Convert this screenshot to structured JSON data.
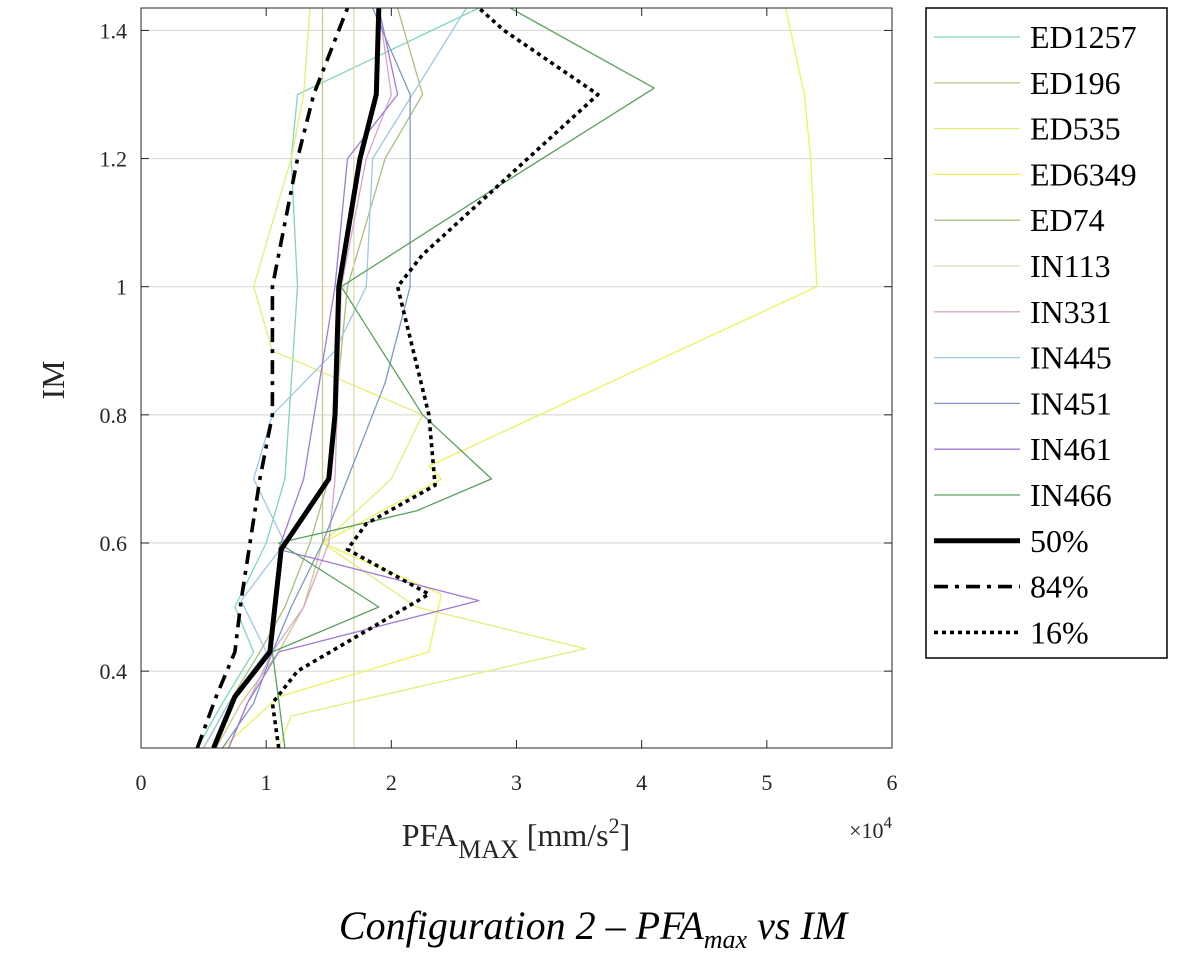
{
  "chart_data": {
    "type": "line",
    "xlabel_main": "PFA",
    "xlabel_sub": "MAX",
    "xlabel_unit": " [mm/s",
    "xlabel_sup": "2",
    "xlabel_end": "]",
    "ylabel": "IM",
    "x_exponent_label": "×10",
    "x_exponent_power": "4",
    "xlim": [
      0,
      6
    ],
    "ylim": [
      0.28,
      1.435
    ],
    "xticks": [
      "0",
      "1",
      "2",
      "3",
      "4",
      "5",
      "6"
    ],
    "yticks": [
      "0.4",
      "0.6",
      "0.8",
      "1",
      "1.2",
      "1.4"
    ],
    "ytick_values": [
      0.4,
      0.6,
      0.8,
      1.0,
      1.2,
      1.4
    ],
    "grid": true,
    "legend_position": "outside-right",
    "series": [
      {
        "name": "ED1257",
        "color": "#7fd6b8",
        "width": 1.3,
        "dash": "",
        "x": [
          0.45,
          0.65,
          0.9,
          0.75,
          1.0,
          1.15,
          1.25,
          1.2,
          1.25,
          2.7
        ],
        "y": [
          0.28,
          0.35,
          0.43,
          0.5,
          0.6,
          0.7,
          1.0,
          1.2,
          1.3,
          1.435
        ]
      },
      {
        "name": "ED196",
        "color": "#c6c98a",
        "width": 1.3,
        "dash": "",
        "x": [
          0.6,
          0.8,
          1.1,
          1.3,
          1.45,
          1.45,
          1.45,
          1.45,
          1.45,
          1.45
        ],
        "y": [
          0.28,
          0.35,
          0.43,
          0.5,
          0.6,
          0.7,
          1.0,
          1.2,
          1.3,
          1.435
        ]
      },
      {
        "name": "ED535",
        "color": "#e6ec78",
        "width": 1.3,
        "dash": "",
        "x": [
          1.1,
          1.2,
          3.55,
          2.2,
          1.45,
          2.0,
          2.25,
          1.05,
          0.9,
          1.2,
          1.3,
          1.35
        ],
        "y": [
          0.28,
          0.33,
          0.435,
          0.5,
          0.6,
          0.7,
          0.8,
          0.9,
          1.0,
          1.2,
          1.3,
          1.435
        ]
      },
      {
        "name": "ED6349",
        "color": "#eef25a",
        "width": 1.3,
        "dash": "",
        "x": [
          0.65,
          1.1,
          2.3,
          2.4,
          1.45,
          2.4,
          2.3,
          5.4,
          5.35,
          5.3,
          5.15
        ],
        "y": [
          0.28,
          0.36,
          0.43,
          0.52,
          0.6,
          0.7,
          0.72,
          1.0,
          1.2,
          1.3,
          1.435
        ]
      },
      {
        "name": "ED74",
        "color": "#a8c07c",
        "width": 1.3,
        "dash": "",
        "x": [
          0.5,
          0.7,
          0.95,
          1.15,
          1.35,
          1.5,
          1.65,
          1.95,
          2.25,
          2.05
        ],
        "y": [
          0.28,
          0.35,
          0.43,
          0.5,
          0.6,
          0.7,
          1.0,
          1.2,
          1.3,
          1.435
        ]
      },
      {
        "name": "IN113",
        "color": "#ddd8b6",
        "width": 1.3,
        "dash": "",
        "x": [
          1.7,
          1.7
        ],
        "y": [
          0.28,
          1.435
        ]
      },
      {
        "name": "IN331",
        "color": "#d6a8c8",
        "width": 1.3,
        "dash": "",
        "x": [
          0.7,
          0.85,
          1.05,
          1.3,
          1.5,
          1.55,
          1.6,
          1.8,
          2.0,
          1.9
        ],
        "y": [
          0.28,
          0.35,
          0.43,
          0.5,
          0.6,
          0.7,
          1.0,
          1.2,
          1.3,
          1.435
        ]
      },
      {
        "name": "IN445",
        "color": "#9ec8e2",
        "width": 1.3,
        "dash": "",
        "x": [
          0.5,
          0.7,
          1.0,
          0.8,
          1.15,
          0.9,
          1.05,
          1.55,
          1.8,
          1.85,
          2.6
        ],
        "y": [
          0.28,
          0.35,
          0.43,
          0.51,
          0.6,
          0.7,
          0.8,
          0.9,
          1.0,
          1.2,
          1.435
        ]
      },
      {
        "name": "IN451",
        "color": "#7d98c4",
        "width": 1.3,
        "dash": "",
        "x": [
          0.65,
          0.9,
          1.05,
          1.2,
          1.45,
          1.65,
          1.95,
          2.15,
          2.15,
          2.15,
          1.85
        ],
        "y": [
          0.28,
          0.35,
          0.43,
          0.5,
          0.6,
          0.7,
          0.85,
          1.0,
          1.2,
          1.3,
          1.435
        ]
      },
      {
        "name": "IN461",
        "color": "#a07ad8",
        "width": 1.3,
        "dash": "",
        "x": [
          0.7,
          0.85,
          1.1,
          2.7,
          1.1,
          1.3,
          1.55,
          1.65,
          2.05,
          1.9
        ],
        "y": [
          0.28,
          0.35,
          0.43,
          0.51,
          0.59,
          0.7,
          1.0,
          1.2,
          1.3,
          1.435
        ]
      },
      {
        "name": "IN466",
        "color": "#5aa05e",
        "width": 1.3,
        "dash": "",
        "x": [
          1.15,
          1.05,
          1.9,
          1.1,
          2.2,
          2.8,
          2.25,
          1.6,
          2.8,
          4.1,
          2.95
        ],
        "y": [
          0.28,
          0.43,
          0.5,
          0.6,
          0.65,
          0.7,
          0.8,
          1.0,
          1.15,
          1.31,
          1.435
        ]
      },
      {
        "name": "50%",
        "color": "#000000",
        "width": 5,
        "dash": "",
        "x": [
          0.58,
          0.75,
          1.03,
          1.12,
          1.5,
          1.55,
          1.58,
          1.75,
          1.88,
          1.9
        ],
        "y": [
          0.28,
          0.36,
          0.43,
          0.59,
          0.7,
          0.8,
          1.0,
          1.2,
          1.3,
          1.435
        ]
      },
      {
        "name": "84%",
        "color": "#000000",
        "width": 3.6,
        "dash": "14,7,4,7",
        "x": [
          0.45,
          0.6,
          0.75,
          0.8,
          0.95,
          1.05,
          1.05,
          1.25,
          1.38,
          1.65
        ],
        "y": [
          0.28,
          0.36,
          0.43,
          0.51,
          0.7,
          0.8,
          1.0,
          1.2,
          1.3,
          1.435
        ]
      },
      {
        "name": "16%",
        "color": "#000000",
        "width": 3.6,
        "dash": "4,4",
        "x": [
          1.1,
          1.05,
          1.25,
          2.3,
          1.65,
          1.8,
          2.35,
          2.3,
          2.05,
          2.25,
          3.65,
          2.9,
          2.7
        ],
        "y": [
          0.28,
          0.35,
          0.4,
          0.52,
          0.59,
          0.63,
          0.69,
          0.8,
          1.0,
          1.05,
          1.3,
          1.4,
          1.435
        ]
      }
    ]
  },
  "caption": {
    "pre": "Configuration 2 – PFA",
    "sub": "max",
    "post": " vs IM"
  }
}
